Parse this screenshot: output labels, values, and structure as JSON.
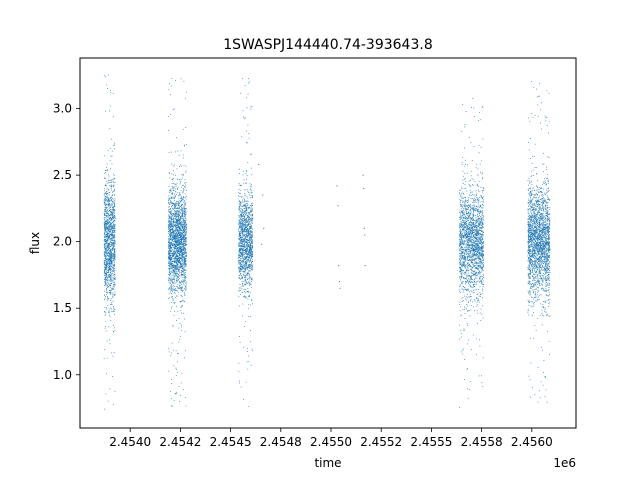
{
  "chart_data": {
    "type": "scatter",
    "title": "1SWASPJ144440.74-393643.8",
    "xlabel": "time",
    "ylabel": "flux",
    "x_offset_label": "1e6",
    "xlim": [
      2453750,
      2456220
    ],
    "ylim": [
      0.6,
      3.38
    ],
    "x_ticks": [
      2454000,
      2454250,
      2454500,
      2454750,
      2455000,
      2455250,
      2455500
    ],
    "x_tick_labels": [
      "2.4540",
      "2.4542",
      "2.4545",
      "2.4548",
      "2.4550",
      "2.4552",
      "2.4555"
    ],
    "x_ticks_extra": [
      2455750,
      2456000
    ],
    "x_tick_labels_extra": [
      "2.4558",
      "2.4560"
    ],
    "y_ticks": [
      1.0,
      1.5,
      2.0,
      2.5,
      3.0
    ],
    "y_tick_labels": [
      "1.0",
      "1.5",
      "2.0",
      "2.5",
      "3.0"
    ],
    "grid": false,
    "marker_color": "#1f77b4",
    "series": [
      {
        "clusters": [
          {
            "x_range": [
              2453870,
              2453925
            ],
            "y_center": 2.0,
            "y_spread": 0.22,
            "y_min": 0.73,
            "y_max": 3.27,
            "count": 1400
          },
          {
            "x_range": [
              2454190,
              2454280
            ],
            "y_center": 2.0,
            "y_spread": 0.2,
            "y_min": 0.73,
            "y_max": 3.24,
            "count": 2200
          },
          {
            "x_range": [
              2454540,
              2454610
            ],
            "y_center": 2.0,
            "y_spread": 0.18,
            "y_min": 0.75,
            "y_max": 3.25,
            "count": 1400
          },
          {
            "x_range": [
              2455640,
              2455760
            ],
            "y_center": 2.0,
            "y_spread": 0.2,
            "y_min": 0.74,
            "y_max": 3.12,
            "count": 2000
          },
          {
            "x_range": [
              2455980,
              2456090
            ],
            "y_center": 2.0,
            "y_spread": 0.2,
            "y_min": 0.75,
            "y_max": 3.25,
            "count": 2200
          }
        ],
        "isolated_points": [
          [
            2454640,
            2.58
          ],
          [
            2454655,
            1.98
          ],
          [
            2454660,
            2.35
          ],
          [
            2454665,
            2.1
          ],
          [
            2455030,
            2.42
          ],
          [
            2455035,
            2.27
          ],
          [
            2455038,
            1.82
          ],
          [
            2455042,
            1.7
          ],
          [
            2455045,
            1.65
          ],
          [
            2455160,
            2.5
          ],
          [
            2455163,
            2.4
          ],
          [
            2455166,
            2.1
          ],
          [
            2455168,
            2.05
          ],
          [
            2455170,
            1.82
          ]
        ]
      }
    ]
  }
}
